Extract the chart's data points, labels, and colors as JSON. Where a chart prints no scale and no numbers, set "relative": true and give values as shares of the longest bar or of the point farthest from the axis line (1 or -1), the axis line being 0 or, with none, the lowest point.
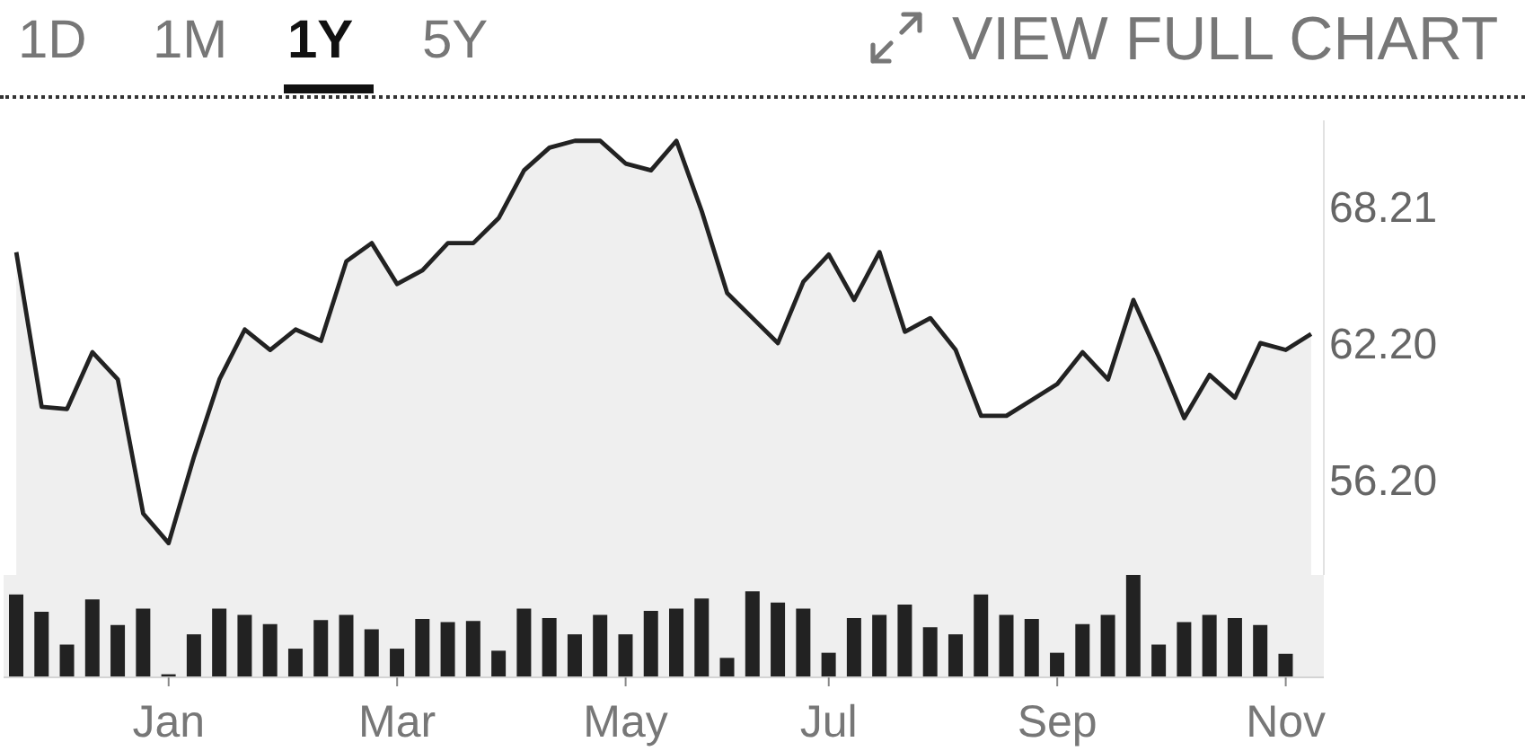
{
  "chart_data": [
    {
      "type": "area",
      "annotations": [
        "1D",
        "1M",
        "1Y",
        "5Y",
        "VIEW FULL CHART"
      ],
      "categories": [
        null,
        null,
        null,
        null,
        null,
        null,
        null,
        null,
        null,
        null,
        null,
        null,
        null,
        null,
        null,
        null,
        null,
        null,
        null,
        null,
        null,
        null,
        null,
        null,
        null,
        null,
        null,
        null,
        null,
        null,
        null,
        null,
        null,
        null,
        null,
        null,
        null,
        null,
        null,
        null,
        null,
        null,
        null,
        null,
        null,
        null,
        null,
        null,
        null,
        null,
        null,
        null
      ],
      "series": [
        {
          "color": "#222222",
          "values": [
            66.2,
            59.4,
            59.3,
            61.8,
            60.6,
            54.7,
            53.4,
            57.2,
            60.6,
            62.8,
            61.9,
            62.8,
            62.3,
            65.8,
            66.6,
            64.8,
            65.4,
            66.6,
            66.6,
            67.7,
            69.8,
            70.8,
            71.1,
            71.1,
            70.1,
            69.8,
            71.1,
            68.0,
            64.4,
            63.3,
            62.2,
            64.9,
            66.1,
            64.1,
            66.2,
            62.7,
            63.3,
            61.9,
            59.0,
            59.0,
            59.7,
            60.4,
            61.8,
            60.6,
            64.1,
            61.6,
            58.9,
            60.8,
            59.8,
            62.2,
            61.9,
            62.6
          ]
        }
      ],
      "ylim": [
        52,
        72
      ],
      "yticks": [
        {
          "value": 56.2,
          "label": "56.20"
        },
        {
          "value": 62.2,
          "label": "62.20"
        },
        68.21
      ],
      "tick_labels": "y"
    },
    {
      "type": "bar",
      "relative": true,
      "categories": [
        null,
        null,
        null,
        null,
        null,
        null,
        "Jan",
        null,
        null,
        null,
        null,
        null,
        null,
        null,
        null,
        "Mar",
        null,
        null,
        null,
        null,
        null,
        null,
        null,
        null,
        "May",
        null,
        null,
        null,
        null,
        null,
        null,
        null,
        "Jul",
        null,
        null,
        null,
        null,
        null,
        null,
        null,
        null,
        "Sep",
        null,
        null,
        null,
        null,
        null,
        null,
        null,
        null,
        "Nov",
        null
      ],
      "series": [
        {
          "color": "#222222",
          "values": [
            0.81,
            0.64,
            0.32,
            0.76,
            0.51,
            0.67,
            0.03,
            0.42,
            0.67,
            0.61,
            0.52,
            0.28,
            0.56,
            0.61,
            0.47,
            0.28,
            0.57,
            0.54,
            0.55,
            0.26,
            0.67,
            0.58,
            0.42,
            0.61,
            0.42,
            0.65,
            0.67,
            0.77,
            0.19,
            0.84,
            0.73,
            0.67,
            0.24,
            0.58,
            0.61,
            0.71,
            0.49,
            0.42,
            0.81,
            0.61,
            0.57,
            0.24,
            0.52,
            0.61,
            1,
            0.32,
            0.54,
            0.61,
            0.58,
            0.51,
            0.23,
            null
          ]
        }
      ],
      "tick_labels": "x"
    }
  ]
}
